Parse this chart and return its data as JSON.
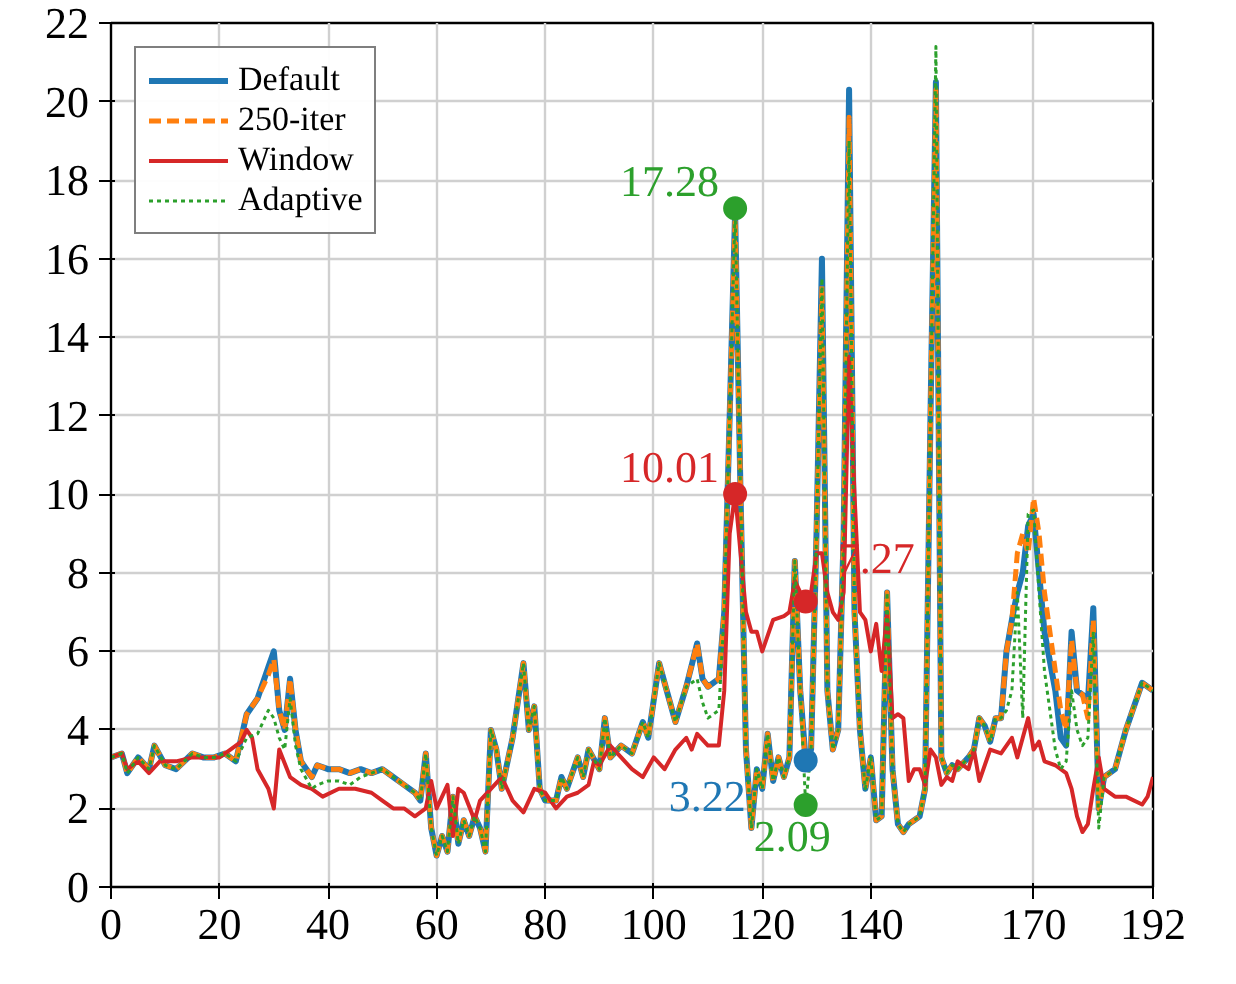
{
  "chart_data": {
    "type": "line",
    "xlim": [
      0,
      192
    ],
    "ylim": [
      0,
      22
    ],
    "xticks": [
      0,
      20,
      40,
      60,
      80,
      100,
      120,
      140,
      170,
      192
    ],
    "yticks": [
      0,
      2,
      4,
      6,
      8,
      10,
      12,
      14,
      16,
      18,
      20,
      22
    ],
    "grid": true,
    "legend": "top left",
    "marker": "none",
    "x": [
      0,
      2,
      3,
      5,
      7,
      8,
      10,
      12,
      15,
      17,
      19,
      21,
      23,
      25,
      27,
      29,
      30,
      31,
      32,
      33,
      34,
      35,
      37,
      38,
      40,
      42,
      44,
      46,
      48,
      50,
      52,
      54,
      56,
      57,
      58,
      59,
      60,
      61,
      62,
      63,
      64,
      65,
      66,
      67,
      68,
      69,
      70,
      71,
      72,
      74,
      76,
      77,
      78,
      79,
      80,
      82,
      83,
      84,
      86,
      87,
      88,
      90,
      91,
      92,
      94,
      96,
      98,
      99,
      101,
      103,
      104,
      106,
      108,
      109,
      110,
      112,
      113,
      114,
      115,
      116,
      117,
      118,
      119,
      120,
      121,
      122,
      123,
      124,
      125,
      126,
      127,
      128,
      129,
      130,
      131,
      132,
      133,
      134,
      135,
      136,
      137,
      138,
      139,
      140,
      141,
      142,
      143,
      144,
      145,
      146,
      147,
      148,
      149,
      150,
      151,
      152,
      153,
      154,
      155,
      156,
      158,
      159,
      160,
      161,
      162,
      163,
      164,
      165,
      166,
      167,
      168,
      169,
      170,
      171,
      172,
      174,
      175,
      176,
      177,
      178,
      179,
      180,
      181,
      182,
      183,
      185,
      186,
      187,
      188,
      189,
      190,
      192
    ],
    "series": [
      {
        "name": "Default",
        "color": "#1f77b4",
        "line_style": "solid",
        "values": [
          3.3,
          3.4,
          2.9,
          3.3,
          3.0,
          3.6,
          3.1,
          3.0,
          3.4,
          3.3,
          3.3,
          3.4,
          3.2,
          4.4,
          4.8,
          5.6,
          6.0,
          4.5,
          4.0,
          5.3,
          4.0,
          3.2,
          2.8,
          3.1,
          3.0,
          3.0,
          2.9,
          3.0,
          2.9,
          3.0,
          2.8,
          2.6,
          2.4,
          2.2,
          3.4,
          1.5,
          0.8,
          1.3,
          0.9,
          2.3,
          1.1,
          1.7,
          1.3,
          1.8,
          1.5,
          0.9,
          4.0,
          3.5,
          2.5,
          3.8,
          5.7,
          4.0,
          4.6,
          2.5,
          2.2,
          2.2,
          2.8,
          2.5,
          3.3,
          2.8,
          3.5,
          3.0,
          4.3,
          3.3,
          3.6,
          3.4,
          4.2,
          3.8,
          5.7,
          4.7,
          4.2,
          5.1,
          6.2,
          5.3,
          5.1,
          5.3,
          7.0,
          12.0,
          17.2,
          10.0,
          3.5,
          1.5,
          3.0,
          2.5,
          3.9,
          2.7,
          3.3,
          2.8,
          3.3,
          8.3,
          5.0,
          3.22,
          3.5,
          9.0,
          16.0,
          5.0,
          3.5,
          4.0,
          9.0,
          20.3,
          7.0,
          4.0,
          2.5,
          3.3,
          1.7,
          1.8,
          7.5,
          3.0,
          1.6,
          1.4,
          1.6,
          1.7,
          1.8,
          2.5,
          12.0,
          20.5,
          3.3,
          2.9,
          3.1,
          3.0,
          3.3,
          3.5,
          4.3,
          4.1,
          3.7,
          4.3,
          4.3,
          6.0,
          6.8,
          7.5,
          8.0,
          9.2,
          9.5,
          8.0,
          6.5,
          5.0,
          3.8,
          3.6,
          6.5,
          5.0,
          4.9,
          4.7,
          7.1,
          2.0,
          2.8,
          3.0,
          3.5,
          4.0,
          4.4,
          4.8,
          5.2,
          5.0
        ]
      },
      {
        "name": "250-iter",
        "color": "#ff7f0e",
        "line_style": "dashed",
        "values": [
          3.3,
          3.4,
          2.9,
          3.3,
          3.0,
          3.6,
          3.1,
          3.0,
          3.4,
          3.3,
          3.3,
          3.4,
          3.2,
          4.4,
          4.8,
          5.4,
          5.8,
          4.5,
          4.0,
          5.3,
          4.0,
          3.2,
          2.8,
          3.1,
          3.0,
          3.0,
          2.9,
          3.0,
          2.9,
          3.0,
          2.8,
          2.6,
          2.4,
          2.2,
          3.4,
          1.5,
          0.8,
          1.3,
          0.9,
          2.3,
          1.1,
          1.7,
          1.3,
          1.8,
          1.5,
          0.9,
          4.0,
          3.5,
          2.5,
          3.8,
          5.7,
          4.0,
          4.6,
          2.5,
          2.2,
          2.2,
          2.8,
          2.5,
          3.3,
          2.8,
          3.5,
          3.0,
          4.3,
          3.3,
          3.6,
          3.4,
          4.2,
          3.8,
          5.7,
          4.7,
          4.2,
          5.1,
          6.2,
          5.3,
          5.1,
          5.3,
          7.0,
          12.0,
          17.0,
          10.0,
          3.5,
          1.5,
          3.0,
          2.5,
          3.9,
          2.7,
          3.3,
          2.8,
          3.3,
          8.3,
          5.0,
          3.0,
          3.5,
          9.0,
          15.3,
          5.0,
          3.5,
          4.0,
          9.0,
          19.6,
          7.0,
          4.0,
          2.5,
          3.3,
          1.7,
          1.8,
          7.5,
          3.0,
          1.6,
          1.4,
          1.6,
          1.7,
          1.8,
          2.5,
          12.0,
          20.3,
          3.3,
          2.9,
          3.1,
          3.0,
          3.3,
          3.5,
          4.3,
          4.1,
          3.7,
          4.3,
          4.3,
          6.0,
          6.8,
          8.5,
          9.0,
          8.5,
          9.9,
          9.0,
          7.5,
          5.5,
          4.5,
          4.0,
          6.3,
          5.0,
          4.9,
          4.3,
          6.8,
          2.0,
          2.8,
          3.0,
          3.5,
          4.0,
          4.4,
          4.8,
          5.2,
          5.0
        ]
      },
      {
        "name": "Window",
        "color": "#d62728",
        "line_style": "solid",
        "x": [
          0,
          2,
          3,
          5,
          7,
          9,
          12,
          15,
          20,
          22,
          24,
          25,
          26,
          27,
          29,
          30,
          31,
          33,
          35,
          37,
          39,
          42,
          45,
          48,
          50,
          52,
          54,
          56,
          58,
          59,
          60,
          62,
          63,
          64,
          65,
          67,
          68,
          70,
          72,
          74,
          76,
          78,
          80,
          82,
          84,
          86,
          88,
          89,
          90,
          92,
          94,
          96,
          98,
          100,
          102,
          104,
          106,
          107,
          108,
          110,
          112,
          113,
          114,
          115,
          116,
          117,
          118,
          119,
          120,
          122,
          124,
          125,
          126,
          127,
          128,
          129,
          130,
          131,
          132,
          133,
          134,
          135,
          136,
          137,
          138,
          139,
          140,
          141,
          142,
          143,
          144,
          145,
          146,
          147,
          148,
          149,
          150,
          151,
          152,
          153,
          154,
          155,
          156,
          158,
          159,
          160,
          162,
          164,
          166,
          167,
          168,
          169,
          170,
          171,
          172,
          174,
          176,
          177,
          178,
          179,
          180,
          181,
          182,
          183,
          185,
          187,
          190,
          191,
          192
        ],
        "values": [
          3.3,
          3.4,
          3.0,
          3.2,
          2.9,
          3.2,
          3.2,
          3.3,
          3.3,
          3.5,
          3.7,
          4.0,
          3.8,
          3.0,
          2.5,
          2.0,
          3.5,
          2.8,
          2.6,
          2.5,
          2.3,
          2.5,
          2.5,
          2.4,
          2.2,
          2.0,
          2.0,
          1.8,
          2.0,
          2.7,
          2.0,
          2.6,
          1.3,
          2.5,
          2.4,
          1.7,
          2.2,
          2.5,
          2.8,
          2.2,
          1.9,
          2.5,
          2.4,
          2.0,
          2.3,
          2.4,
          2.6,
          3.2,
          3.1,
          3.6,
          3.3,
          3.0,
          2.8,
          3.3,
          3.0,
          3.5,
          3.8,
          3.5,
          3.9,
          3.6,
          3.6,
          5.0,
          9.0,
          10.01,
          8.5,
          7.0,
          6.5,
          6.5,
          6.0,
          6.8,
          6.9,
          7.0,
          7.8,
          7.5,
          7.27,
          7.5,
          8.5,
          8.5,
          7.5,
          7.0,
          6.8,
          7.5,
          13.5,
          10.0,
          7.0,
          6.8,
          6.0,
          6.7,
          5.5,
          7.0,
          4.3,
          4.4,
          4.3,
          2.7,
          3.0,
          3.0,
          2.6,
          3.5,
          3.3,
          2.6,
          2.8,
          2.7,
          3.2,
          3.0,
          3.5,
          2.7,
          3.5,
          3.4,
          3.8,
          3.3,
          3.8,
          4.3,
          3.5,
          3.7,
          3.2,
          3.1,
          2.9,
          2.5,
          1.8,
          1.4,
          1.6,
          2.5,
          3.3,
          2.5,
          2.3,
          2.3,
          2.1,
          2.3,
          2.8
        ]
      },
      {
        "name": "Adaptive",
        "color": "#2ca02c",
        "line_style": "dotted",
        "values": [
          3.3,
          3.4,
          2.9,
          3.3,
          3.0,
          3.6,
          3.1,
          3.0,
          3.4,
          3.3,
          3.3,
          3.4,
          3.2,
          3.8,
          3.9,
          4.5,
          4.3,
          3.8,
          3.5,
          4.8,
          3.6,
          3.0,
          2.5,
          2.6,
          2.7,
          2.7,
          2.6,
          2.8,
          2.9,
          3.0,
          2.8,
          2.6,
          2.4,
          2.2,
          3.4,
          1.5,
          0.8,
          1.3,
          0.9,
          2.3,
          1.1,
          1.7,
          1.3,
          1.8,
          1.5,
          0.9,
          4.0,
          3.5,
          2.5,
          3.8,
          5.7,
          4.0,
          4.6,
          2.5,
          2.2,
          2.2,
          2.8,
          2.5,
          3.3,
          2.8,
          3.5,
          3.0,
          4.3,
          3.3,
          3.6,
          3.4,
          4.2,
          3.8,
          5.7,
          4.7,
          4.2,
          5.1,
          5.3,
          4.7,
          4.3,
          4.5,
          7.0,
          12.0,
          17.28,
          10.0,
          3.5,
          1.5,
          3.0,
          2.5,
          3.9,
          2.7,
          3.3,
          2.8,
          3.3,
          8.3,
          5.0,
          2.09,
          3.5,
          9.0,
          15.5,
          5.0,
          3.5,
          4.0,
          9.0,
          19.0,
          7.0,
          4.0,
          2.5,
          3.3,
          1.7,
          1.8,
          7.5,
          3.0,
          1.6,
          1.4,
          1.6,
          1.7,
          1.8,
          2.5,
          12.0,
          21.4,
          3.3,
          2.9,
          3.1,
          3.0,
          3.3,
          3.5,
          4.3,
          4.1,
          3.7,
          4.3,
          4.3,
          4.5,
          5.0,
          7.5,
          4.3,
          9.5,
          9.6,
          7.5,
          5.5,
          3.5,
          3.0,
          3.2,
          5.0,
          4.0,
          3.6,
          3.8,
          6.5,
          1.5,
          2.8,
          3.0,
          3.5,
          4.0,
          4.4,
          4.8,
          5.2,
          5.0
        ]
      },
      {
        "type": "scatter",
        "marker": "circle",
        "color": "#2ca02c",
        "x": [
          115
        ],
        "values": [
          17.28
        ],
        "value_labels": [
          "17.28"
        ]
      },
      {
        "type": "scatter",
        "marker": "circle",
        "color": "#d62728",
        "x": [
          115
        ],
        "values": [
          10.01
        ],
        "value_labels": [
          "10.01"
        ]
      },
      {
        "type": "scatter",
        "marker": "circle",
        "color": "#d62728",
        "x": [
          128
        ],
        "values": [
          7.27
        ],
        "value_labels": [
          "7.27"
        ]
      },
      {
        "type": "scatter",
        "marker": "circle",
        "color": "#1f77b4",
        "x": [
          128
        ],
        "values": [
          3.22
        ],
        "value_labels": [
          "3.22"
        ]
      },
      {
        "type": "scatter",
        "marker": "circle",
        "color": "#2ca02c",
        "x": [
          128
        ],
        "values": [
          2.09
        ],
        "value_labels": [
          "2.09"
        ]
      }
    ]
  }
}
